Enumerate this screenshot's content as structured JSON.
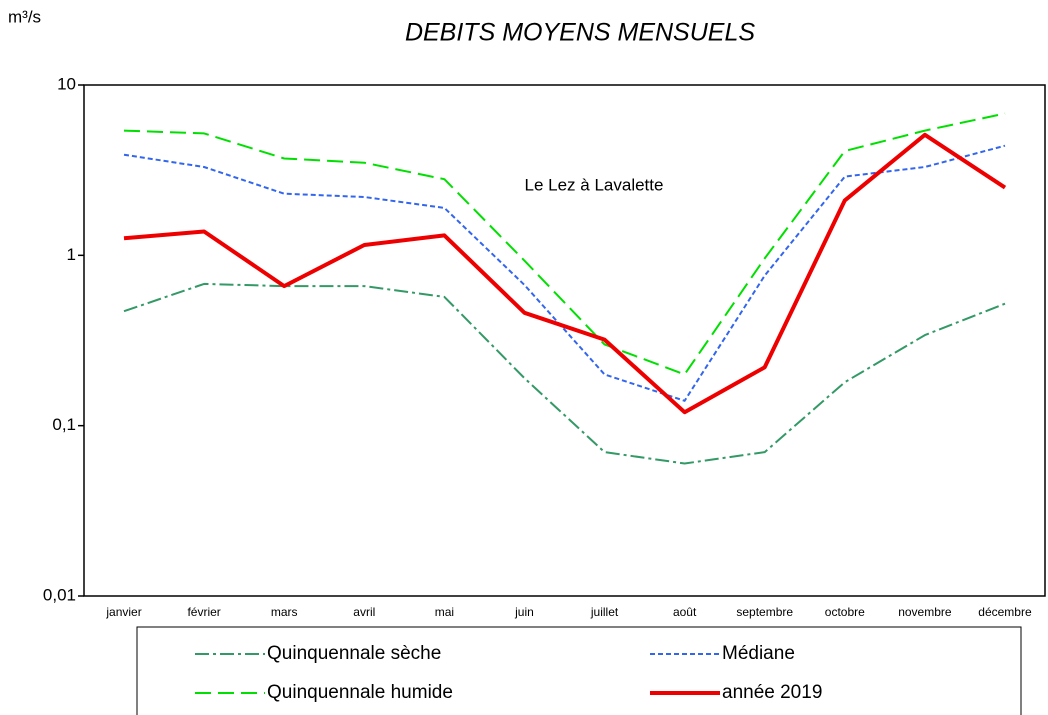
{
  "chart_data": {
    "type": "line",
    "title": "DEBITS MOYENS MENSUELS",
    "y_label": "m³/s",
    "annotation": "Le Lez à Lavalette",
    "categories": [
      "janvier",
      "février",
      "mars",
      "avril",
      "mai",
      "juin",
      "juillet",
      "août",
      "septembre",
      "octobre",
      "novembre",
      "décembre"
    ],
    "series": [
      {
        "name": "Quinquennale sèche",
        "color": "#339966",
        "dash": "14 4 3 4",
        "width": 2,
        "values": [
          0.47,
          0.68,
          0.66,
          0.66,
          0.57,
          0.19,
          0.07,
          0.06,
          0.07,
          0.18,
          0.34,
          0.52
        ]
      },
      {
        "name": "Médiane",
        "color": "#3366ee",
        "dash": "5 3",
        "width": 2,
        "values": [
          3.9,
          3.3,
          2.3,
          2.2,
          1.9,
          0.67,
          0.2,
          0.14,
          0.76,
          2.9,
          3.3,
          4.4
        ]
      },
      {
        "name": "Quinquennale humide",
        "color": "#00e000",
        "dash": "16 7",
        "width": 2,
        "values": [
          5.4,
          5.2,
          3.7,
          3.5,
          2.8,
          0.93,
          0.3,
          0.2,
          0.96,
          4.1,
          5.4,
          6.8
        ]
      },
      {
        "name": "année 2019",
        "color": "#ee0000",
        "dash": "none",
        "width": 4,
        "values": [
          1.26,
          1.38,
          0.66,
          1.15,
          1.31,
          0.46,
          0.32,
          0.12,
          0.22,
          2.1,
          5.1,
          2.5
        ]
      }
    ],
    "log_scale": true,
    "grid": false,
    "legend": "bottom",
    "ylim": [
      0.01,
      10
    ],
    "yticks": [
      {
        "value": 0.01,
        "label": "0,01"
      },
      {
        "value": 0.1,
        "label": "0,1"
      },
      1,
      10
    ]
  }
}
